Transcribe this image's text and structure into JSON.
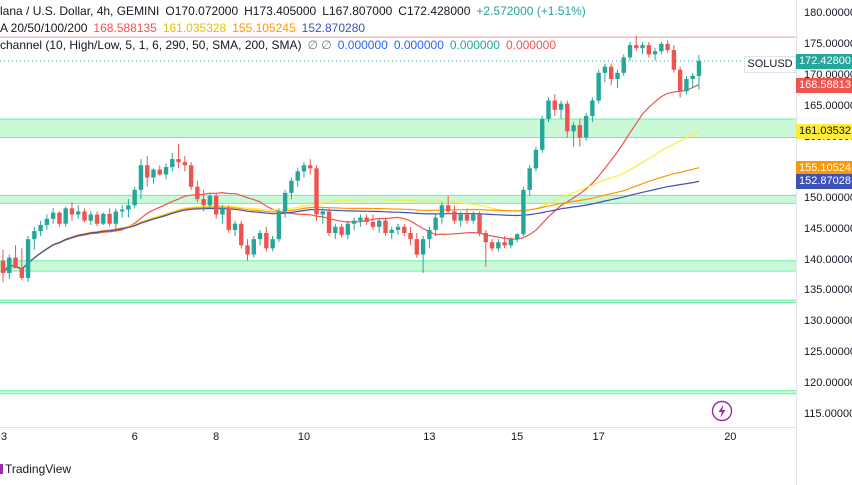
{
  "legend": {
    "title": "lana / U.S. Dollar, 4h, GEMINI",
    "open": "O170.072000",
    "high": "H173.405000",
    "low": "L167.807000",
    "close": "C172.428000",
    "change": "+2.572000 (+1.51%)",
    "ma_label": "A 20/50/100/200",
    "ma_values": [
      "168.588135",
      "161.035328",
      "155.105245",
      "152.870280"
    ],
    "channel_label": "channel (10, High/Low, 5, 1, 6, 290, 50, SMA, 200, SMA)",
    "channel_symbols": "∅ ∅",
    "channel_values": [
      "0.000000",
      "0.000000",
      "0.000000",
      "0.000000"
    ]
  },
  "colors": {
    "up": "#26a69a",
    "down": "#ef5350",
    "ma20": "#ef5350",
    "ma50": "#ffeb3b",
    "ma100": "#ff9800",
    "ma200": "#3f51b5",
    "zone": "#b9f6ca",
    "resistance_line": "#ef9a9a",
    "channel_value_color": "#2962ff",
    "brand_accent": "#9c27b0"
  },
  "symbol_tag": "SOLUSD",
  "price_tags": [
    {
      "text": "172.42800",
      "price": 172.428,
      "bg": "#26a69a",
      "fg": "#ffffff"
    },
    {
      "text": "168.58813",
      "price": 168.588,
      "bg": "#ef5350",
      "fg": "#ffffff"
    },
    {
      "text": "161.03532",
      "price": 161.035,
      "bg": "#ffeb3b",
      "fg": "#131722"
    },
    {
      "text": "155.10524",
      "price": 155.105,
      "bg": "#ff9800",
      "fg": "#ffffff"
    },
    {
      "text": "152.87028",
      "price": 152.87,
      "bg": "#3f51b5",
      "fg": "#ffffff"
    }
  ],
  "brand": "TradingView",
  "icon": "lightning-icon",
  "chart_data": {
    "type": "candlestick",
    "timeframe": "4h",
    "y_range": [
      113,
      182
    ],
    "y_ticks": [
      "180.000000",
      "175.000000",
      "170.000000",
      "165.000000",
      "160.000000",
      "155.000000",
      "150.000000",
      "145.000000",
      "140.000000",
      "135.000000",
      "130.000000",
      "125.000000",
      "120.000000",
      "115.000000"
    ],
    "y_tick_values": [
      180,
      175,
      170,
      165,
      160,
      155,
      150,
      145,
      140,
      135,
      130,
      125,
      120,
      115
    ],
    "x_ticks": [
      {
        "label": "3",
        "index": 0
      },
      {
        "label": "6",
        "index": 21
      },
      {
        "label": "8",
        "index": 34
      },
      {
        "label": "10",
        "index": 48
      },
      {
        "label": "13",
        "index": 68
      },
      {
        "label": "15",
        "index": 82
      },
      {
        "label": "17",
        "index": 95
      },
      {
        "label": "20",
        "index": 116
      }
    ],
    "candles": [
      [
        140.0,
        141.8,
        136.5,
        138.0
      ],
      [
        138.0,
        141.0,
        137.0,
        140.5
      ],
      [
        140.5,
        142.5,
        139.0,
        138.8
      ],
      [
        138.8,
        142.0,
        136.8,
        137.2
      ],
      [
        137.2,
        144.0,
        136.5,
        143.5
      ],
      [
        143.5,
        145.5,
        141.8,
        144.8
      ],
      [
        144.8,
        146.5,
        144.0,
        145.8
      ],
      [
        145.8,
        147.5,
        145.0,
        146.8
      ],
      [
        146.8,
        148.5,
        146.0,
        147.8
      ],
      [
        147.8,
        148.0,
        145.5,
        146.0
      ],
      [
        146.0,
        148.8,
        145.5,
        148.5
      ],
      [
        148.5,
        149.5,
        146.5,
        147.5
      ],
      [
        147.5,
        149.0,
        146.8,
        148.0
      ],
      [
        148.0,
        148.5,
        146.2,
        146.5
      ],
      [
        146.5,
        148.0,
        145.8,
        147.5
      ],
      [
        147.5,
        148.0,
        145.6,
        146.0
      ],
      [
        146.0,
        147.8,
        145.8,
        147.6
      ],
      [
        147.6,
        148.5,
        145.6,
        146.0
      ],
      [
        146.0,
        148.5,
        145.2,
        148.0
      ],
      [
        148.0,
        149.0,
        147.0,
        148.3
      ],
      [
        148.3,
        150.0,
        147.0,
        149.0
      ],
      [
        149.0,
        152.0,
        148.5,
        151.5
      ],
      [
        151.5,
        156.5,
        150.0,
        155.5
      ],
      [
        155.5,
        157.0,
        152.0,
        153.5
      ],
      [
        153.5,
        155.0,
        152.5,
        154.8
      ],
      [
        154.8,
        155.5,
        153.8,
        154.0
      ],
      [
        154.0,
        155.8,
        153.2,
        155.2
      ],
      [
        155.2,
        157.5,
        154.5,
        156.5
      ],
      [
        156.5,
        159.0,
        155.0,
        156.0
      ],
      [
        156.0,
        157.0,
        154.5,
        155.5
      ],
      [
        155.5,
        156.0,
        151.5,
        152.0
      ],
      [
        152.0,
        153.0,
        149.5,
        150.0
      ],
      [
        150.0,
        151.5,
        148.0,
        149.0
      ],
      [
        149.0,
        151.0,
        148.5,
        150.5
      ],
      [
        150.5,
        151.0,
        146.8,
        147.5
      ],
      [
        147.5,
        149.0,
        146.0,
        148.5
      ],
      [
        148.5,
        149.0,
        144.5,
        145.0
      ],
      [
        145.0,
        146.5,
        144.0,
        146.0
      ],
      [
        146.0,
        146.5,
        142.0,
        142.5
      ],
      [
        142.5,
        143.5,
        140.0,
        141.0
      ],
      [
        141.0,
        144.0,
        140.5,
        143.5
      ],
      [
        143.5,
        145.0,
        142.5,
        144.5
      ],
      [
        144.5,
        145.5,
        141.5,
        142.0
      ],
      [
        142.0,
        144.0,
        141.5,
        143.5
      ],
      [
        143.5,
        148.5,
        143.0,
        148.0
      ],
      [
        148.0,
        151.5,
        147.0,
        151.0
      ],
      [
        151.0,
        153.5,
        150.0,
        153.0
      ],
      [
        153.0,
        155.0,
        152.0,
        154.5
      ],
      [
        154.5,
        156.0,
        153.5,
        155.5
      ],
      [
        155.5,
        156.5,
        154.0,
        155.0
      ],
      [
        155.0,
        155.5,
        146.5,
        147.5
      ],
      [
        147.5,
        148.5,
        146.0,
        148.0
      ],
      [
        148.0,
        148.5,
        144.0,
        144.5
      ],
      [
        144.5,
        146.0,
        143.5,
        145.5
      ],
      [
        145.5,
        146.0,
        143.8,
        144.2
      ],
      [
        144.2,
        146.5,
        143.5,
        146.0
      ],
      [
        146.0,
        147.0,
        145.0,
        146.5
      ],
      [
        146.5,
        147.5,
        145.5,
        147.0
      ],
      [
        147.0,
        147.5,
        145.8,
        146.3
      ],
      [
        146.3,
        147.5,
        145.0,
        145.5
      ],
      [
        145.5,
        147.0,
        144.5,
        146.5
      ],
      [
        146.5,
        147.0,
        144.0,
        144.5
      ],
      [
        144.5,
        145.5,
        143.5,
        145.0
      ],
      [
        145.0,
        146.0,
        144.2,
        145.5
      ],
      [
        145.5,
        146.0,
        144.0,
        144.5
      ],
      [
        144.5,
        145.5,
        142.5,
        143.5
      ],
      [
        143.5,
        144.5,
        140.5,
        141.0
      ],
      [
        141.0,
        144.0,
        138.0,
        143.5
      ],
      [
        143.5,
        145.5,
        142.0,
        145.0
      ],
      [
        145.0,
        147.5,
        144.0,
        147.0
      ],
      [
        147.0,
        149.5,
        146.0,
        149.0
      ],
      [
        149.0,
        150.5,
        147.5,
        148.0
      ],
      [
        148.0,
        149.0,
        146.0,
        146.5
      ],
      [
        146.5,
        148.0,
        145.5,
        147.5
      ],
      [
        147.5,
        148.5,
        146.0,
        146.5
      ],
      [
        146.5,
        148.0,
        146.0,
        147.5
      ],
      [
        147.5,
        148.0,
        144.0,
        144.5
      ],
      [
        144.5,
        145.0,
        139.0,
        143.0
      ],
      [
        143.0,
        143.5,
        141.5,
        142.0
      ],
      [
        142.0,
        143.5,
        141.5,
        143.0
      ],
      [
        143.0,
        144.0,
        142.0,
        142.5
      ],
      [
        142.5,
        143.8,
        142.0,
        143.5
      ],
      [
        143.5,
        144.5,
        143.0,
        144.3
      ],
      [
        144.3,
        152.0,
        144.0,
        151.5
      ],
      [
        151.5,
        155.5,
        150.5,
        155.0
      ],
      [
        155.0,
        158.5,
        154.5,
        158.0
      ],
      [
        158.0,
        163.5,
        157.5,
        163.0
      ],
      [
        163.0,
        166.5,
        162.5,
        166.0
      ],
      [
        166.0,
        167.0,
        163.5,
        164.5
      ],
      [
        164.5,
        166.0,
        163.0,
        165.5
      ],
      [
        165.5,
        166.0,
        160.0,
        161.0
      ],
      [
        161.0,
        162.5,
        158.5,
        162.0
      ],
      [
        162.0,
        163.0,
        158.5,
        160.0
      ],
      [
        160.0,
        164.0,
        159.5,
        163.5
      ],
      [
        163.5,
        166.5,
        162.5,
        166.0
      ],
      [
        166.0,
        171.0,
        165.5,
        170.5
      ],
      [
        170.5,
        172.0,
        169.0,
        171.5
      ],
      [
        171.5,
        172.0,
        168.5,
        169.5
      ],
      [
        169.5,
        171.0,
        168.0,
        170.5
      ],
      [
        170.5,
        173.5,
        170.0,
        173.0
      ],
      [
        173.0,
        175.5,
        172.5,
        175.0
      ],
      [
        175.0,
        176.5,
        174.0,
        174.5
      ],
      [
        174.5,
        175.5,
        173.5,
        175.0
      ],
      [
        175.0,
        175.5,
        173.0,
        173.5
      ],
      [
        173.5,
        174.5,
        172.5,
        174.0
      ],
      [
        174.0,
        175.5,
        173.5,
        175.2
      ],
      [
        175.2,
        175.8,
        173.8,
        174.2
      ],
      [
        174.2,
        175.0,
        170.5,
        171.0
      ],
      [
        171.0,
        171.5,
        166.5,
        167.5
      ],
      [
        167.5,
        170.0,
        167.0,
        169.5
      ],
      [
        169.5,
        170.5,
        168.0,
        170.0
      ],
      [
        170.0,
        173.4,
        167.8,
        172.4
      ]
    ],
    "moving_averages": [
      {
        "name": "MA20",
        "period": 20,
        "value": 168.588135
      },
      {
        "name": "MA50",
        "period": 50,
        "value": 161.035328
      },
      {
        "name": "MA100",
        "period": 100,
        "value": 155.105245
      },
      {
        "name": "MA200",
        "period": 200,
        "value": 152.87028
      }
    ],
    "zones": [
      {
        "from": 160.0,
        "to": 163.0
      },
      {
        "from": 149.3,
        "to": 150.6
      },
      {
        "from": 138.3,
        "to": 140.0
      },
      {
        "from": 133.2,
        "to": 133.6
      },
      {
        "from": 118.4,
        "to": 118.9
      }
    ],
    "resistance": 176.3,
    "last_price": 172.428
  }
}
